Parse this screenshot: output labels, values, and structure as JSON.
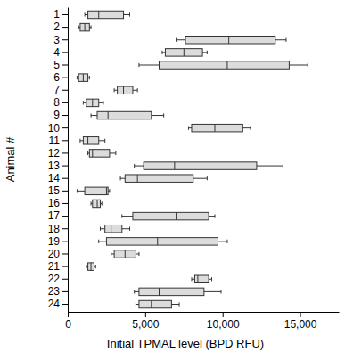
{
  "chart_data": {
    "type": "box",
    "orientation": "horizontal",
    "x_label": "Initial TPMAL level (BPD RFU)",
    "y_label": "Animal #",
    "categories": [
      "1",
      "2",
      "3",
      "4",
      "5",
      "6",
      "7",
      "8",
      "9",
      "10",
      "11",
      "12",
      "13",
      "14",
      "15",
      "16",
      "17",
      "18",
      "19",
      "20",
      "21",
      "22",
      "23",
      "24"
    ],
    "min": [
      1100,
      700,
      7000,
      6100,
      4600,
      600,
      3000,
      1000,
      1500,
      7800,
      800,
      1300,
      4300,
      3400,
      600,
      1500,
      3500,
      2100,
      2000,
      2800,
      1200,
      8000,
      4300,
      4400
    ],
    "q1": [
      1300,
      800,
      7600,
      6300,
      5900,
      700,
      3200,
      1200,
      1900,
      8000,
      1000,
      1400,
      4900,
      3700,
      1100,
      1600,
      4200,
      2400,
      2500,
      3000,
      1300,
      8200,
      4600,
      4600
    ],
    "median": [
      2000,
      1100,
      10400,
      7500,
      10300,
      1000,
      3600,
      1600,
      2600,
      9500,
      1300,
      1600,
      6900,
      4500,
      2500,
      1900,
      7000,
      2800,
      5800,
      3700,
      1500,
      8400,
      5900,
      5400
    ],
    "q3": [
      3600,
      1400,
      13400,
      8700,
      14300,
      1300,
      4200,
      2000,
      5400,
      11300,
      2000,
      2700,
      12200,
      8100,
      2600,
      2100,
      9100,
      3500,
      9700,
      4400,
      1700,
      9100,
      8800,
      6700
    ],
    "max": [
      4000,
      1500,
      14100,
      9000,
      15500,
      1400,
      4500,
      2300,
      6200,
      11800,
      2400,
      3100,
      13900,
      9000,
      2700,
      2200,
      9500,
      4000,
      10300,
      4600,
      1800,
      9300,
      9900,
      7200
    ],
    "color": "#dcdcdc",
    "xlim": [
      0,
      17500
    ],
    "xticks": [
      0,
      {
        "value": 5000,
        "label": "5,000"
      },
      {
        "value": 10000,
        "label": "10,000"
      },
      {
        "value": 15000,
        "label": "15,000"
      }
    ]
  }
}
